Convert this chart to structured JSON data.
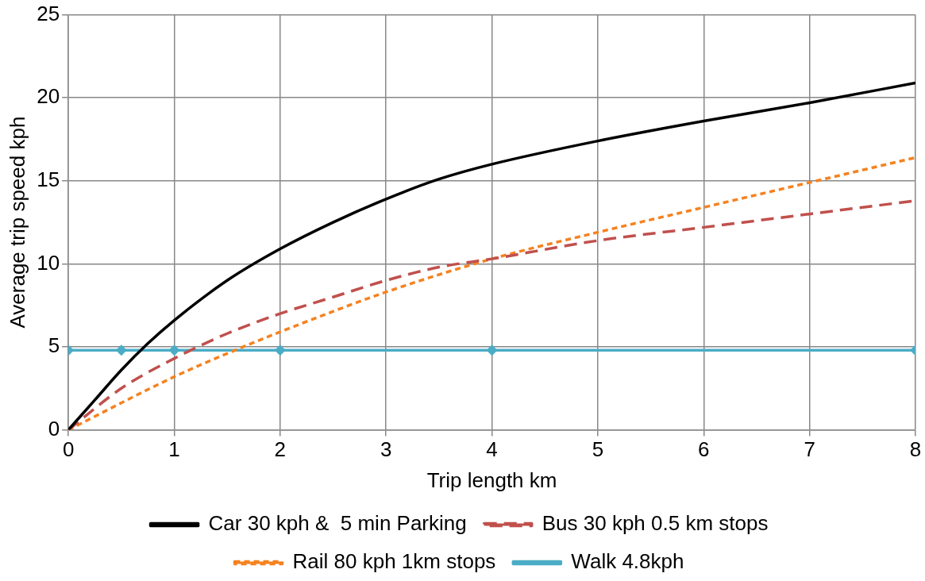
{
  "chart_data": {
    "type": "line",
    "xlabel": "Trip length km",
    "ylabel": "Average trip speed kph",
    "xlim": [
      0,
      8
    ],
    "xticks": [
      0,
      1,
      2,
      3,
      4,
      5,
      6,
      7,
      8
    ],
    "ylim": [
      0,
      25
    ],
    "yticks": [
      0,
      5,
      10,
      15,
      20,
      25
    ],
    "grid": true,
    "legend": "bottom",
    "series": [
      {
        "name": "Car 30 kph &  5 min Parking",
        "color": "#000000",
        "line_style": "solid",
        "marker": "none",
        "x": [
          0,
          0.25,
          0.5,
          0.75,
          1,
          1.5,
          2,
          2.5,
          3,
          3.5,
          4,
          5,
          6,
          7,
          8
        ],
        "values": [
          0,
          1.8,
          3.6,
          5.2,
          6.6,
          9,
          10.9,
          12.5,
          13.9,
          15.1,
          16,
          17.4,
          18.6,
          19.7,
          20.9
        ]
      },
      {
        "name": "Bus 30 kph 0.5 km stops",
        "color": "#c0504d",
        "line_style": "dashed",
        "marker": "none",
        "x": [
          0,
          0.5,
          1,
          1.5,
          2,
          2.5,
          3,
          3.5,
          4,
          5,
          6,
          7,
          8
        ],
        "values": [
          0,
          2.5,
          4.3,
          5.8,
          7,
          8,
          9,
          9.8,
          10.3,
          11.4,
          12.2,
          13,
          13.8
        ]
      },
      {
        "name": "Rail 80 kph 1km stops",
        "color": "#f58220",
        "line_style": "dotted",
        "marker": "none",
        "x": [
          0,
          1,
          1.5,
          2,
          3,
          4,
          5,
          6,
          7,
          8
        ],
        "values": [
          0,
          3.2,
          4.6,
          5.9,
          8.3,
          10.3,
          11.9,
          13.4,
          14.9,
          16.4
        ]
      },
      {
        "name": "Walk 4.8kph",
        "color": "#4bacc6",
        "line_style": "solid",
        "marker": "diamond",
        "x": [
          0,
          0.5,
          1,
          2,
          4,
          8
        ],
        "values": [
          4.8,
          4.8,
          4.8,
          4.8,
          4.8,
          4.8
        ]
      }
    ]
  }
}
